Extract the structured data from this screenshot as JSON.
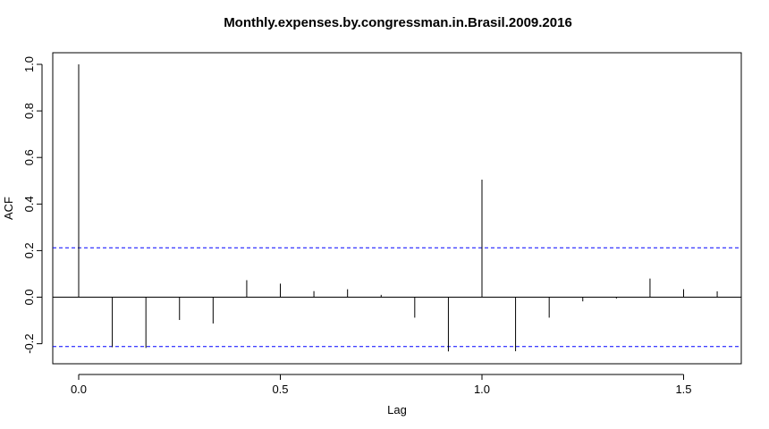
{
  "chart_data": {
    "type": "bar",
    "title": "Monthly.expenses.by.congressman.in.Brasil.2009.2016",
    "xlabel": "Lag",
    "ylabel": "ACF",
    "xlim": [
      0,
      1.65
    ],
    "ylim": [
      -0.24,
      1.05
    ],
    "x_ticks": [
      "0.0",
      "0.5",
      "1.0",
      "1.5"
    ],
    "y_ticks": [
      "-0.2",
      "0.0",
      "0.2",
      "0.4",
      "0.6",
      "0.8",
      "1.0"
    ],
    "confidence_bound": 0.212,
    "lags": [
      0,
      0.0833,
      0.1667,
      0.25,
      0.3333,
      0.4167,
      0.5,
      0.5833,
      0.6667,
      0.75,
      0.8333,
      0.9167,
      1.0,
      1.0833,
      1.1667,
      1.25,
      1.3333,
      1.4167,
      1.5,
      1.5833
    ],
    "values": [
      1.0,
      -0.215,
      -0.218,
      -0.098,
      -0.113,
      0.073,
      0.058,
      0.026,
      0.034,
      0.01,
      -0.088,
      -0.233,
      0.505,
      -0.232,
      -0.088,
      -0.018,
      -0.006,
      0.08,
      0.034,
      0.025
    ],
    "colors": {
      "bars": "#000000",
      "bounds": "#0000ff",
      "frame": "#000000"
    }
  }
}
